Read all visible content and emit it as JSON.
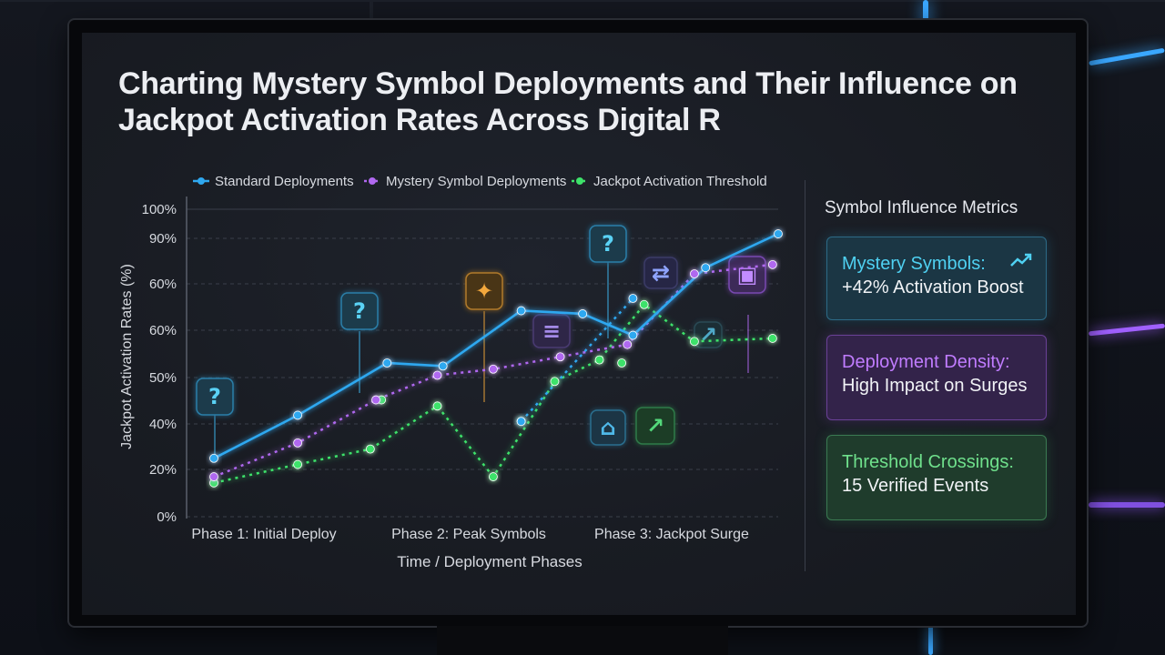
{
  "title": "Charting Mystery Symbol Deployments and Their Influence on Jackpot Activation Rates Across Digital R",
  "colors": {
    "standard": "#2fa8f0",
    "mystery": "#b068f0",
    "threshold": "#3ee26a",
    "grid": "#3a3f4a",
    "text": "#d7dae0"
  },
  "icons": [
    "question-mark-icon",
    "coin-icon",
    "sound-wave-icon",
    "shuffle-icon",
    "lock-icon",
    "trend-up-icon",
    "bell-icon",
    "arrow-up-icon"
  ],
  "chart_data": {
    "type": "line",
    "title": "",
    "xlabel": "Time / Deployment Phases",
    "ylabel": "Jackpot Activation Rates (%)",
    "y_tick_labels": [
      "0%",
      "20%",
      "40%",
      "50%",
      "60%",
      "60%",
      "90%",
      "100%"
    ],
    "x_tick_labels": [
      "Phase 1: Initial Deploy",
      "Phase 2: Peak Symbols",
      "Phase 3: Jackpot Surge"
    ],
    "legend_position": "top",
    "grid": true,
    "ylim": [
      0,
      100
    ],
    "x": [
      0,
      1,
      2,
      3,
      4,
      5,
      6,
      7,
      8,
      9,
      10,
      11,
      12,
      13
    ],
    "series": [
      {
        "name": "Standard Deployments",
        "color": "#2fa8f0",
        "points": [
          [
            0,
            19
          ],
          [
            1.5,
            33
          ],
          [
            3.1,
            50
          ],
          [
            4.1,
            49
          ],
          [
            5.5,
            67
          ],
          [
            6.6,
            66
          ],
          [
            7.5,
            59
          ],
          [
            8.8,
            81
          ],
          [
            10.1,
            92
          ]
        ],
        "dashed_tail": [
          [
            5.5,
            31
          ],
          [
            7.5,
            71
          ]
        ]
      },
      {
        "name": "Mystery Symbol Deployments",
        "color": "#b068f0",
        "points": [
          [
            0,
            13
          ],
          [
            1.5,
            24
          ],
          [
            2.9,
            38
          ],
          [
            4.0,
            46
          ],
          [
            5.0,
            48
          ],
          [
            6.2,
            52
          ],
          [
            7.4,
            56
          ],
          [
            8.6,
            79
          ],
          [
            10.0,
            82
          ]
        ]
      },
      {
        "name": "Jackpot Activation Threshold",
        "color": "#3ee26a",
        "points": [
          [
            0,
            11
          ],
          [
            1.5,
            17
          ],
          [
            2.8,
            22
          ],
          [
            4.0,
            36
          ],
          [
            5.0,
            13
          ],
          [
            6.1,
            44
          ],
          [
            6.9,
            51
          ],
          [
            7.7,
            69
          ],
          [
            8.6,
            57
          ],
          [
            10.0,
            58
          ]
        ],
        "extra": [
          [
            3.0,
            38
          ],
          [
            5.5,
            31
          ],
          [
            7.3,
            50
          ]
        ]
      }
    ]
  },
  "panel": {
    "title": "Symbol Influence Metrics",
    "cards": [
      {
        "label": "Mystery Symbols:",
        "value": "+42% Activation Boost"
      },
      {
        "label": "Deployment Density:",
        "value": "High Impact on Surges"
      },
      {
        "label": "Threshold Crossings:",
        "value": "15 Verified Events"
      }
    ]
  }
}
